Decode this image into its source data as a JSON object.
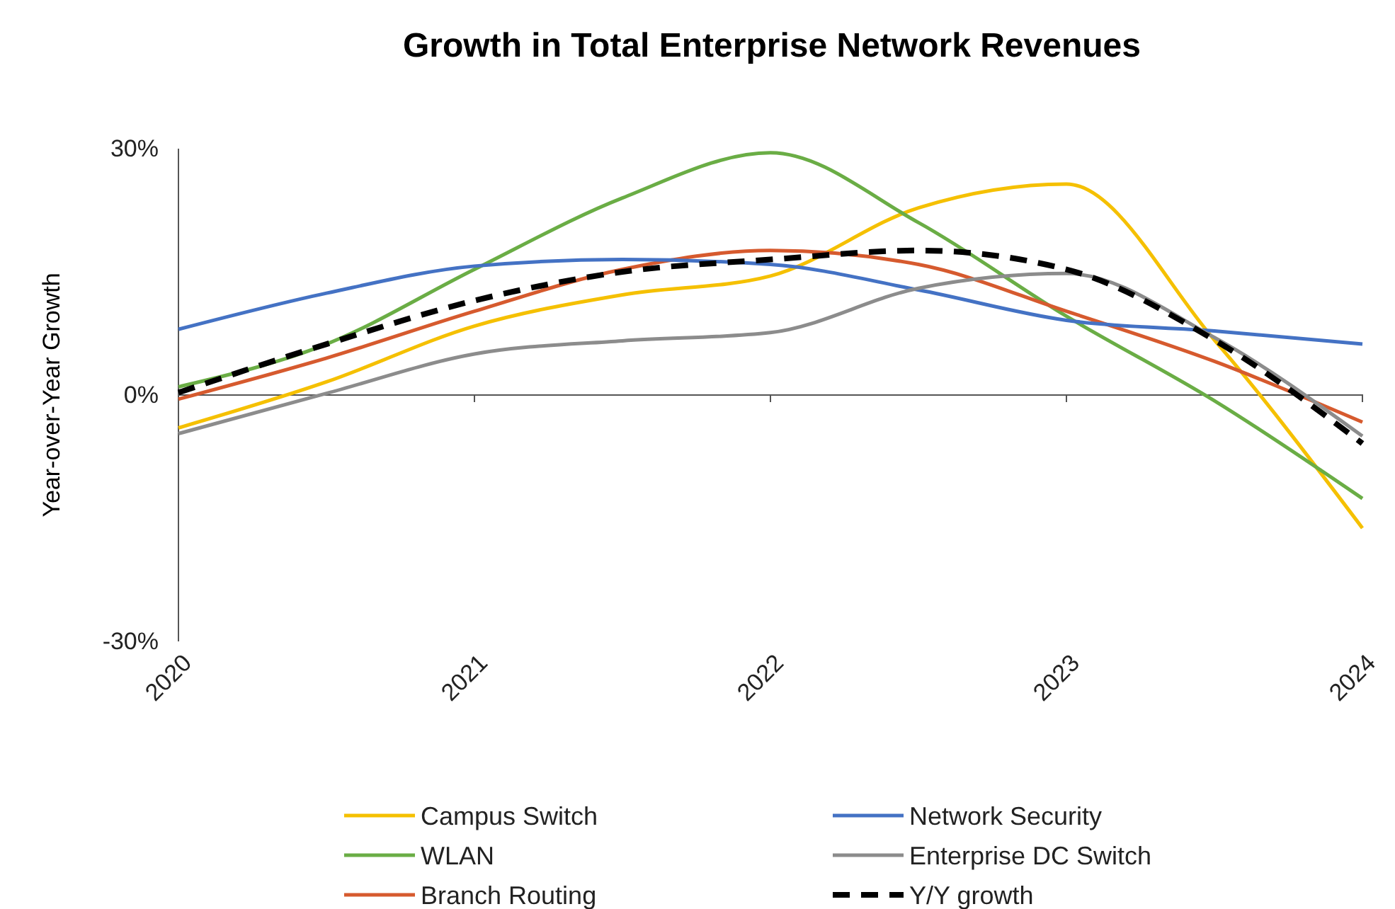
{
  "chart_data": {
    "type": "line",
    "title": "Growth in Total Enterprise Network Revenues",
    "ylabel": "Year-over-Year Growth",
    "x": [
      2020,
      2020.5,
      2021,
      2021.5,
      2022,
      2022.5,
      2023,
      2023.5,
      2024
    ],
    "xlim": [
      2020,
      2024
    ],
    "xticks": [
      2020,
      2021,
      2022,
      2023,
      2024
    ],
    "ylim": [
      -30,
      30
    ],
    "yticks": [
      {
        "value": 30,
        "label": "30%"
      },
      {
        "value": 0,
        "label": "0%"
      },
      {
        "value": -30,
        "label": "-30%"
      }
    ],
    "grid": false,
    "legend": "bottom",
    "marker": "none",
    "series": [
      {
        "name": "Campus Switch",
        "color": "#f5c000",
        "values": [
          -4,
          1.6,
          8.4,
          12.2,
          14.5,
          22.8,
          25.7,
          6.7,
          -16.2
        ]
      },
      {
        "name": "WLAN",
        "color": "#6aad45",
        "values": [
          1,
          6.2,
          15.3,
          24,
          29.5,
          21,
          9.6,
          -0.7,
          -12.6
        ]
      },
      {
        "name": "Branch Routing",
        "color": "#d65a2e",
        "values": [
          -0.5,
          4.5,
          10.2,
          15.3,
          17.6,
          15.9,
          10.2,
          4.1,
          -3.3
        ]
      },
      {
        "name": "Network Security",
        "color": "#4472c4",
        "values": [
          8,
          12.4,
          15.7,
          16.5,
          15.9,
          12.8,
          9.1,
          7.8,
          6.2
        ]
      },
      {
        "name": "Enterprise DC Switch",
        "color": "#8c8c8c",
        "values": [
          -4.7,
          0.2,
          5,
          6.6,
          7.6,
          13,
          14.8,
          7,
          -5
        ]
      },
      {
        "name": "Y/Y growth",
        "color": "#000000",
        "line_style": "dashed",
        "values": [
          0.3,
          6.2,
          11.5,
          15,
          16.5,
          17.6,
          15.3,
          6.7,
          -5.9
        ]
      }
    ]
  }
}
